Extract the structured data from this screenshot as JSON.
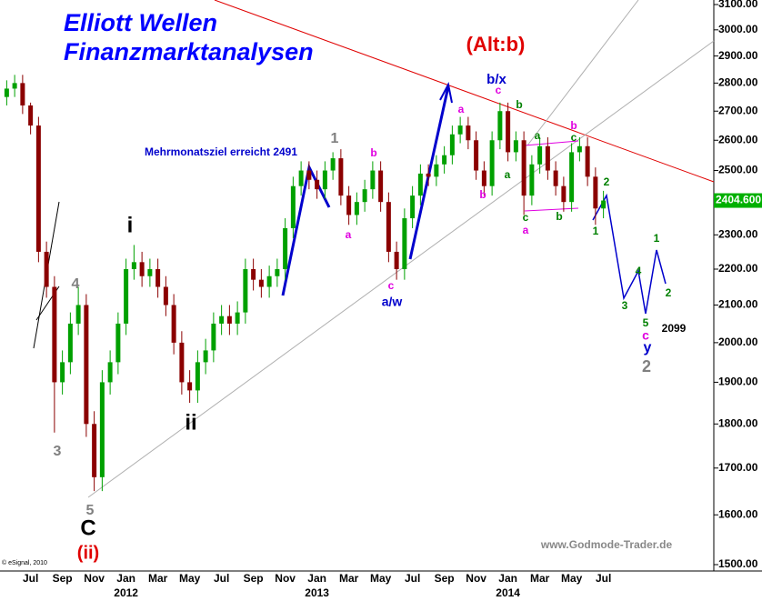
{
  "chart_data": {
    "type": "candlestick",
    "title": "Elliott Wellen",
    "subtitle": "Finanzmarktanalysen",
    "source": "www.Godmode-Trader.de",
    "copyright": "© eSignal, 2010",
    "log_scale": true,
    "up_color": "#00a000",
    "down_color": "#8b0000",
    "categories": [
      null,
      null,
      null,
      "Jul",
      null,
      null,
      null,
      "Sep",
      null,
      null,
      null,
      "Nov",
      null,
      null,
      null,
      "Jan",
      null,
      null,
      null,
      "Mar",
      null,
      null,
      null,
      "May",
      null,
      null,
      null,
      "Jul",
      null,
      null,
      null,
      "Sep",
      null,
      null,
      null,
      "Nov",
      null,
      null,
      null,
      "Jan",
      null,
      null,
      null,
      "Mar",
      null,
      null,
      null,
      "May",
      null,
      null,
      null,
      "Jul",
      null,
      null,
      null,
      "Sep",
      null,
      null,
      null,
      "Nov",
      null,
      null,
      null,
      "Jan",
      null,
      null,
      null,
      "Mar",
      null,
      null,
      null,
      "May",
      null,
      null,
      null,
      "Jul",
      null,
      null,
      null,
      null,
      null,
      null,
      null,
      null
    ],
    "year_labels": [
      "2012",
      "2013",
      "2014"
    ],
    "open": [
      2750,
      2780,
      2800,
      2720,
      2650,
      2250,
      2150,
      1900,
      1950,
      2050,
      2100,
      1800,
      1680,
      1900,
      1950,
      2050,
      2200,
      2220,
      2180,
      2200,
      2150,
      2100,
      2000,
      1900,
      1880,
      1950,
      1980,
      2050,
      2070,
      2050,
      2080,
      2200,
      2170,
      2150,
      2180,
      2200,
      2320,
      2450,
      2500,
      2470,
      2440,
      2500,
      2540,
      2420,
      2360,
      2400,
      2440,
      2500,
      2400,
      2250,
      2200,
      2350,
      2420,
      2490,
      2480,
      2520,
      2550,
      2620,
      2650,
      2600,
      2500,
      2450,
      2600,
      2700,
      2560,
      2600,
      2420,
      2520,
      2580,
      2500,
      2450,
      2400,
      2560,
      2580,
      2480,
      2380,
      null,
      null,
      null,
      null,
      null,
      null,
      null,
      null
    ],
    "high": [
      2810,
      2830,
      2830,
      2730,
      2680,
      2280,
      2180,
      1980,
      2080,
      2150,
      2130,
      1830,
      1930,
      1980,
      2080,
      2230,
      2270,
      2250,
      2230,
      2230,
      2180,
      2130,
      2030,
      1930,
      1980,
      2010,
      2080,
      2100,
      2100,
      2110,
      2230,
      2230,
      2200,
      2210,
      2230,
      2350,
      2480,
      2530,
      2530,
      2500,
      2530,
      2560,
      2570,
      2450,
      2430,
      2470,
      2530,
      2530,
      2430,
      2280,
      2380,
      2450,
      2520,
      2520,
      2550,
      2580,
      2650,
      2680,
      2680,
      2630,
      2530,
      2630,
      2730,
      2730,
      2630,
      2630,
      2550,
      2610,
      2610,
      2530,
      2480,
      2590,
      2610,
      2610,
      2510,
      2435,
      null,
      null,
      null,
      null,
      null,
      null,
      null,
      null
    ],
    "low": [
      2720,
      2750,
      2690,
      2620,
      2220,
      2120,
      1780,
      1870,
      1920,
      2020,
      1770,
      1650,
      1650,
      1870,
      1920,
      2020,
      2170,
      2150,
      2150,
      2120,
      2070,
      1970,
      1870,
      1850,
      1850,
      1920,
      1950,
      2020,
      2020,
      2020,
      2050,
      2140,
      2120,
      2120,
      2150,
      2170,
      2290,
      2420,
      2440,
      2410,
      2410,
      2470,
      2390,
      2330,
      2330,
      2370,
      2410,
      2370,
      2220,
      2170,
      2170,
      2320,
      2390,
      2450,
      2450,
      2490,
      2520,
      2590,
      2570,
      2470,
      2420,
      2420,
      2570,
      2530,
      2530,
      2360,
      2390,
      2490,
      2470,
      2420,
      2370,
      2370,
      2530,
      2450,
      2330,
      2350,
      null,
      null,
      null,
      null,
      null,
      null,
      null,
      null
    ],
    "close": [
      2780,
      2800,
      2720,
      2650,
      2250,
      2150,
      1900,
      1950,
      2050,
      2100,
      1800,
      1680,
      1900,
      1950,
      2050,
      2200,
      2220,
      2180,
      2200,
      2150,
      2100,
      2000,
      1900,
      1880,
      1950,
      1980,
      2050,
      2070,
      2050,
      2080,
      2200,
      2170,
      2150,
      2180,
      2200,
      2320,
      2450,
      2500,
      2470,
      2440,
      2500,
      2540,
      2420,
      2360,
      2400,
      2440,
      2500,
      2400,
      2250,
      2200,
      2350,
      2420,
      2490,
      2480,
      2520,
      2550,
      2620,
      2650,
      2600,
      2500,
      2450,
      2600,
      2700,
      2560,
      2600,
      2420,
      2520,
      2580,
      2500,
      2450,
      2400,
      2560,
      2580,
      2480,
      2380,
      2404.6,
      null,
      null,
      null,
      null,
      null,
      null,
      null,
      null
    ],
    "last_price": {
      "value": 2404.6,
      "label": "2404.600"
    },
    "last_price_color": "#00b000",
    "ylim": [
      1500,
      3100
    ],
    "yticks": [
      {
        "value": 1500,
        "label": "1500.00"
      },
      {
        "value": 1600,
        "label": "1600.00"
      },
      {
        "value": 1700,
        "label": "1700.00"
      },
      {
        "value": 1800,
        "label": "1800.00"
      },
      {
        "value": 1900,
        "label": "1900.00"
      },
      {
        "value": 2000,
        "label": "2000.00"
      },
      {
        "value": 2100,
        "label": "2100.00"
      },
      {
        "value": 2200,
        "label": "2200.00"
      },
      {
        "value": 2300,
        "label": "2300.00"
      },
      {
        "value": 2400,
        "label": "2400.00"
      },
      {
        "value": 2500,
        "label": "2500.00"
      },
      {
        "value": 2600,
        "label": "2600.00"
      },
      {
        "value": 2700,
        "label": "2700.00"
      },
      {
        "value": 2800,
        "label": "2800.00"
      },
      {
        "value": 2900,
        "label": "2900.00"
      },
      {
        "value": 3000,
        "label": "3000.00"
      },
      {
        "value": 3100,
        "label": "3100.00"
      }
    ],
    "annotations": [
      {
        "text": "(Alt:b)",
        "color": "#e00000"
      },
      {
        "text": "b/x",
        "color": "#0000cc"
      },
      {
        "text": "Mehrmonatsziel erreicht 2491",
        "color": "#0000cc"
      },
      {
        "text": "1",
        "color": "#808080"
      },
      {
        "text": "4",
        "color": "#808080"
      },
      {
        "text": "3",
        "color": "#808080"
      },
      {
        "text": "5",
        "color": "#808080"
      },
      {
        "text": "2",
        "color": "#808080"
      },
      {
        "text": "i",
        "color": "#000000"
      },
      {
        "text": "ii",
        "color": "#000000"
      },
      {
        "text": "C",
        "color": "#000000"
      },
      {
        "text": "(ii)",
        "color": "#e00000"
      },
      {
        "text": "c",
        "color": "#e000e0"
      },
      {
        "text": "a",
        "color": "#e000e0"
      },
      {
        "text": "b",
        "color": "#e000e0"
      },
      {
        "text": "a",
        "color": "#e000e0"
      },
      {
        "text": "b",
        "color": "#e000e0"
      },
      {
        "text": "c",
        "color": "#e000e0"
      },
      {
        "text": "b",
        "color": "#e000e0"
      },
      {
        "text": "a",
        "color": "#e000e0"
      },
      {
        "text": "c",
        "color": "#e000e0"
      },
      {
        "text": "a/w",
        "color": "#0000cc"
      },
      {
        "text": "y",
        "color": "#0000cc"
      },
      {
        "text": "b",
        "color": "#008000"
      },
      {
        "text": "a",
        "color": "#008000"
      },
      {
        "text": "c",
        "color": "#008000"
      },
      {
        "text": "a",
        "color": "#008000"
      },
      {
        "text": "c",
        "color": "#008000"
      },
      {
        "text": "b",
        "color": "#008000"
      },
      {
        "text": "1",
        "color": "#008000"
      },
      {
        "text": "2",
        "color": "#008000"
      },
      {
        "text": "3",
        "color": "#008000"
      },
      {
        "text": "4",
        "color": "#008000"
      },
      {
        "text": "5",
        "color": "#008000"
      },
      {
        "text": "1",
        "color": "#008000"
      },
      {
        "text": "2",
        "color": "#008000"
      },
      {
        "text": "2099",
        "color": "#000000"
      }
    ]
  }
}
